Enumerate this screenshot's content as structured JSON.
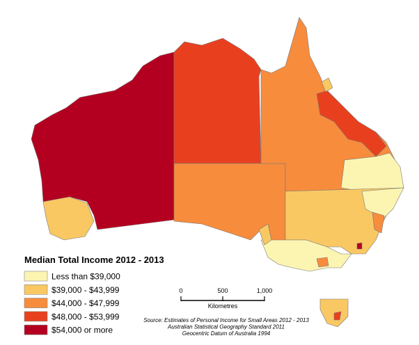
{
  "legend": {
    "title": "Median Total Income 2012 - 2013",
    "items": [
      {
        "label": "Less than $39,000",
        "color": "#fcf5b2"
      },
      {
        "label": "$39,000 - $43,999",
        "color": "#f9c863"
      },
      {
        "label": "$44,000 - $47,999",
        "color": "#f78c3d"
      },
      {
        "label": "$48,000 - $53,999",
        "color": "#e8401f"
      },
      {
        "label": "$54,000 or more",
        "color": "#b40020"
      }
    ]
  },
  "scale_bar": {
    "ticks": [
      0,
      500,
      {
        "value": 1000,
        "label": "1,000"
      }
    ],
    "unit": "Kilometres"
  },
  "source": [
    "Source: Estimates of Personal Income for Small Areas 2012 - 2013",
    "Australian Statistical Geography Standard 2011",
    "Geocentric Datum of Australia 1994"
  ]
}
